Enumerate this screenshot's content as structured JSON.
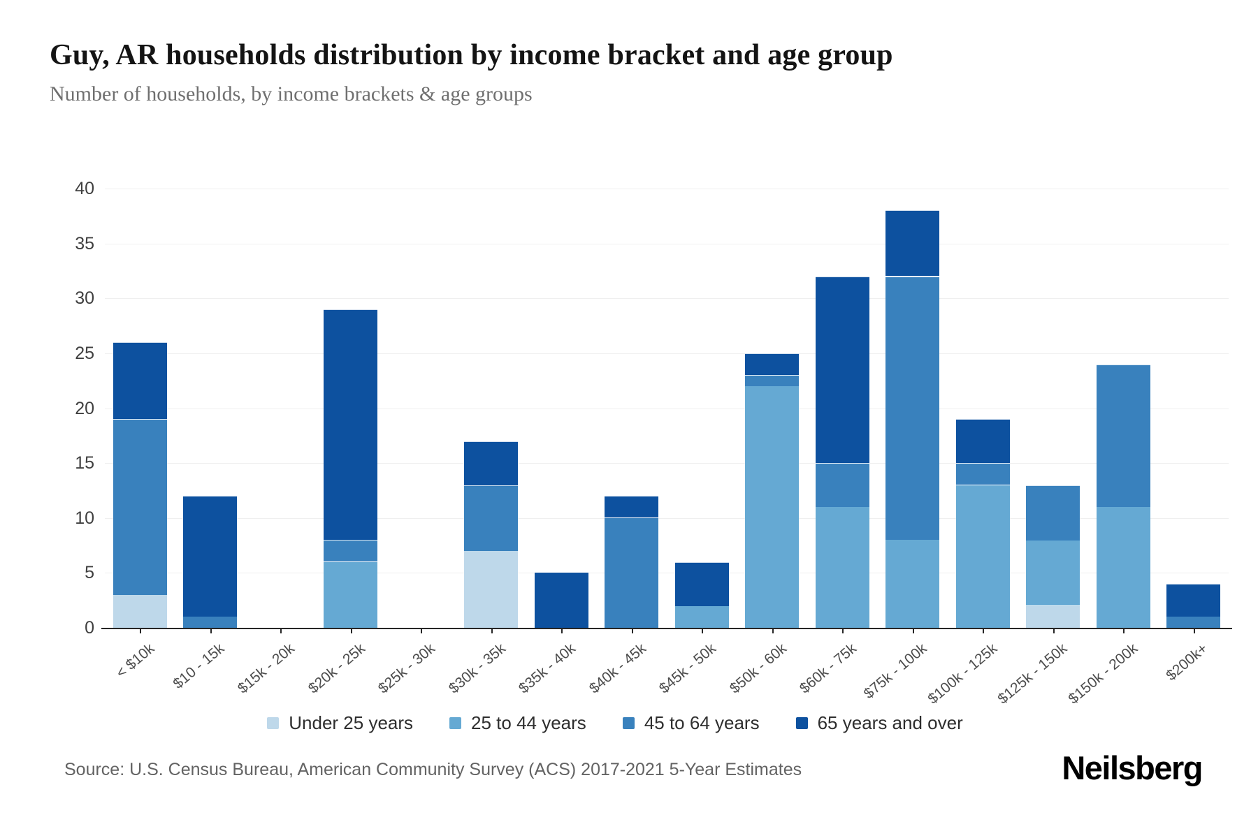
{
  "header": {
    "title": "Guy, AR households distribution by income bracket and age group",
    "subtitle": "Number of households, by income brackets & age groups"
  },
  "chart_data": {
    "type": "bar",
    "stacked": true,
    "title": "Guy, AR households distribution by income bracket and age group",
    "subtitle": "Number of households, by income brackets & age groups",
    "xlabel": "",
    "ylabel": "",
    "ylim": [
      0,
      40
    ],
    "ytick_step": 5,
    "grid": true,
    "legend_position": "bottom",
    "categories": [
      "< $10k",
      "$10 - 15k",
      "$15k - 20k",
      "$20k - 25k",
      "$25k - 30k",
      "$30k - 35k",
      "$35k - 40k",
      "$40k - 45k",
      "$45k - 50k",
      "$50k - 60k",
      "$60k - 75k",
      "$75k - 100k",
      "$100k - 125k",
      "$125k - 150k",
      "$150k - 200k",
      "$200k+"
    ],
    "series": [
      {
        "name": "Under 25 years",
        "color": "#bed8ea",
        "values": [
          3,
          0,
          0,
          0,
          0,
          7,
          0,
          0,
          0,
          0,
          0,
          0,
          0,
          2,
          0,
          0
        ]
      },
      {
        "name": "25 to 44 years",
        "color": "#65a9d3",
        "values": [
          0,
          0,
          0,
          6,
          0,
          0,
          0,
          0,
          2,
          22,
          11,
          8,
          13,
          6,
          11,
          0
        ]
      },
      {
        "name": "45 to 64 years",
        "color": "#3981bd",
        "values": [
          16,
          1,
          0,
          2,
          0,
          6,
          0,
          10,
          0,
          1,
          4,
          24,
          2,
          5,
          13,
          1
        ]
      },
      {
        "name": "65 years and over",
        "color": "#0d519f",
        "values": [
          7,
          11,
          0,
          21,
          0,
          4,
          5,
          2,
          4,
          2,
          17,
          6,
          4,
          0,
          0,
          3
        ]
      }
    ],
    "totals": [
      26,
      12,
      0,
      29,
      0,
      17,
      5,
      12,
      6,
      25,
      32,
      38,
      19,
      13,
      24,
      4
    ]
  },
  "footer": {
    "source": "Source: U.S. Census Bureau, American Community Survey (ACS) 2017-2021 5-Year Estimates",
    "logo": "Neilsberg"
  }
}
